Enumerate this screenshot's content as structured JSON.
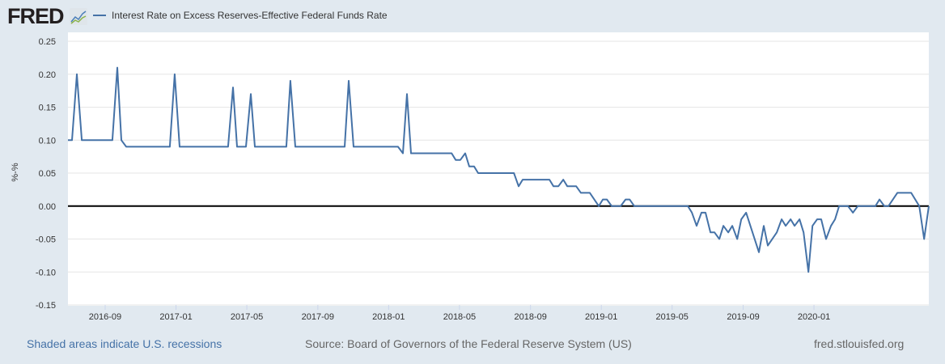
{
  "header": {
    "logo": "FRED",
    "legend_label": "Interest Rate on Excess Reserves-Effective Federal Funds Rate"
  },
  "footer": {
    "recessions": "Shaded areas indicate U.S. recessions",
    "source": "Source: Board of Governors of the Federal Reserve System (US)",
    "site": "fred.stlouisfed.org"
  },
  "colors": {
    "series": "#4572a7",
    "zero_line": "#000000",
    "grid": "#e6e6e6",
    "link": "#4572a7"
  },
  "chart_data": {
    "type": "line",
    "title": "Interest Rate on Excess Reserves-Effective Federal Funds Rate",
    "xlabel": "",
    "ylabel": "%-%",
    "ylim": [
      -0.15,
      0.25
    ],
    "xlim": [
      2016.492,
      2020.54
    ],
    "yticks": [
      0.25,
      0.2,
      0.15,
      0.1,
      0.05,
      0.0,
      -0.05,
      -0.1,
      -0.15
    ],
    "ytick_labels": [
      "0.25",
      "0.20",
      "0.15",
      "0.10",
      "0.05",
      "0.00",
      "-0.05",
      "-0.10",
      "-0.15"
    ],
    "xticks": [
      2016.667,
      2017.0,
      2017.333,
      2017.667,
      2018.0,
      2018.333,
      2018.667,
      2019.0,
      2019.333,
      2019.667,
      2020.0
    ],
    "xtick_labels": [
      "2016-09",
      "2017-01",
      "2017-05",
      "2017-09",
      "2018-01",
      "2018-05",
      "2018-09",
      "2019-01",
      "2019-05",
      "2019-09",
      "2020-01"
    ],
    "grid": true,
    "legend": "top-left",
    "series": [
      {
        "name": "Interest Rate on Excess Reserves-Effective Federal Funds Rate",
        "x": [
          2016.492,
          2016.511,
          2016.534,
          2016.557,
          2016.701,
          2016.724,
          2016.743,
          2016.766,
          2016.971,
          2016.994,
          2017.017,
          2017.245,
          2017.268,
          2017.287,
          2017.329,
          2017.352,
          2017.371,
          2017.519,
          2017.538,
          2017.561,
          2017.793,
          2017.812,
          2017.835,
          2018.044,
          2018.067,
          2018.086,
          2018.105,
          2018.296,
          2018.315,
          2018.337,
          2018.36,
          2018.379,
          2018.402,
          2018.421,
          2018.589,
          2018.611,
          2018.63,
          2018.756,
          2018.775,
          2018.798,
          2018.821,
          2018.84,
          2018.882,
          2018.904,
          2018.946,
          2018.988,
          2019.007,
          2019.026,
          2019.049,
          2019.091,
          2019.114,
          2019.133,
          2019.155,
          2019.407,
          2019.426,
          2019.448,
          2019.471,
          2019.49,
          2019.513,
          2019.532,
          2019.555,
          2019.574,
          2019.597,
          2019.616,
          2019.639,
          2019.658,
          2019.681,
          2019.741,
          2019.764,
          2019.783,
          2019.825,
          2019.848,
          2019.867,
          2019.89,
          2019.909,
          2019.932,
          2019.951,
          2019.974,
          2019.993,
          2020.015,
          2020.034,
          2020.057,
          2020.08,
          2020.099,
          2020.118,
          2020.16,
          2020.183,
          2020.206,
          2020.289,
          2020.308,
          2020.331,
          2020.35,
          2020.392,
          2020.457,
          2020.495,
          2020.518,
          2020.54
        ],
        "y": [
          0.1,
          0.1,
          0.2,
          0.1,
          0.1,
          0.21,
          0.1,
          0.09,
          0.09,
          0.2,
          0.09,
          0.09,
          0.18,
          0.09,
          0.09,
          0.17,
          0.09,
          0.09,
          0.19,
          0.09,
          0.09,
          0.19,
          0.09,
          0.09,
          0.08,
          0.17,
          0.08,
          0.08,
          0.07,
          0.07,
          0.08,
          0.06,
          0.06,
          0.05,
          0.05,
          0.03,
          0.04,
          0.04,
          0.03,
          0.03,
          0.04,
          0.03,
          0.03,
          0.02,
          0.02,
          0.0,
          0.01,
          0.01,
          0.0,
          0.0,
          0.01,
          0.01,
          0.0,
          0.0,
          -0.01,
          -0.03,
          -0.01,
          -0.01,
          -0.04,
          -0.04,
          -0.05,
          -0.03,
          -0.04,
          -0.03,
          -0.05,
          -0.02,
          -0.01,
          -0.07,
          -0.03,
          -0.06,
          -0.04,
          -0.02,
          -0.03,
          -0.02,
          -0.03,
          -0.02,
          -0.04,
          -0.1,
          -0.03,
          -0.02,
          -0.02,
          -0.05,
          -0.03,
          -0.02,
          0.0,
          0.0,
          -0.01,
          0.0,
          0.0,
          0.01,
          0.0,
          0.0,
          0.02,
          0.02,
          0.0,
          -0.05,
          0.0
        ]
      }
    ]
  }
}
